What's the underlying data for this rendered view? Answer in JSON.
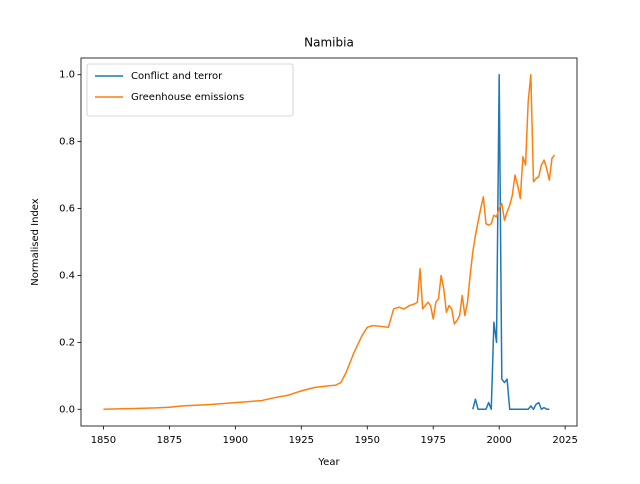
{
  "chart_data": {
    "type": "line",
    "title": "Namibia",
    "x_label": "Year",
    "y_label": "Normalised Index",
    "xlim": [
      1841.5,
      2029.5
    ],
    "ylim": [
      -0.05,
      1.05
    ],
    "xticks": [
      1850,
      1875,
      1900,
      1925,
      1950,
      1975,
      2000,
      2025
    ],
    "yticks": [
      {
        "value": 0,
        "label": "0.0"
      },
      0.2,
      0.4,
      0.6,
      0.8,
      {
        "value": 1,
        "label": "1.0"
      }
    ],
    "legend": "upper left",
    "series": [
      {
        "name": "Conflict and terror",
        "color": "#1f77b4",
        "x": [
          1990,
          1991,
          1992,
          1993,
          1994,
          1995,
          1996,
          1997,
          1998,
          1999,
          2000,
          2001,
          2002,
          2003,
          2004,
          2005,
          2006,
          2007,
          2008,
          2009,
          2010,
          2011,
          2012,
          2013,
          2014,
          2015,
          2016,
          2017,
          2018,
          2019
        ],
        "values": [
          0,
          0.03,
          0,
          0,
          0,
          0,
          0.02,
          0,
          0.26,
          0.2,
          1.0,
          0.09,
          0.08,
          0.09,
          0,
          0,
          0,
          0,
          0,
          0,
          0,
          0,
          0.01,
          0,
          0.015,
          0.02,
          0,
          0.005,
          0,
          0
        ]
      },
      {
        "name": "Greenhouse emissions",
        "color": "#ff7f0e",
        "x": [
          1850,
          1860,
          1870,
          1875,
          1880,
          1890,
          1900,
          1910,
          1915,
          1920,
          1925,
          1930,
          1935,
          1938,
          1940,
          1942,
          1945,
          1948,
          1950,
          1952,
          1955,
          1958,
          1960,
          1962,
          1964,
          1966,
          1968,
          1969,
          1970,
          1971,
          1972,
          1973,
          1974,
          1975,
          1976,
          1977,
          1978,
          1979,
          1980,
          1981,
          1982,
          1983,
          1984,
          1985,
          1986,
          1987,
          1988,
          1989,
          1990,
          1991,
          1992,
          1993,
          1994,
          1995,
          1996,
          1997,
          1998,
          1999,
          2000,
          2001,
          2002,
          2003,
          2004,
          2005,
          2006,
          2007,
          2008,
          2009,
          2010,
          2011,
          2012,
          2013,
          2014,
          2015,
          2016,
          2017,
          2018,
          2019,
          2020,
          2021
        ],
        "values": [
          0,
          0.002,
          0.004,
          0.006,
          0.01,
          0.014,
          0.02,
          0.026,
          0.035,
          0.042,
          0.055,
          0.065,
          0.07,
          0.072,
          0.08,
          0.11,
          0.17,
          0.22,
          0.245,
          0.25,
          0.248,
          0.245,
          0.3,
          0.305,
          0.3,
          0.31,
          0.315,
          0.32,
          0.42,
          0.3,
          0.31,
          0.32,
          0.31,
          0.27,
          0.32,
          0.33,
          0.4,
          0.36,
          0.29,
          0.31,
          0.3,
          0.255,
          0.265,
          0.28,
          0.34,
          0.28,
          0.32,
          0.4,
          0.47,
          0.52,
          0.56,
          0.6,
          0.635,
          0.555,
          0.55,
          0.555,
          0.58,
          0.575,
          0.6,
          0.615,
          0.565,
          0.59,
          0.61,
          0.64,
          0.7,
          0.67,
          0.63,
          0.755,
          0.73,
          0.92,
          1.0,
          0.68,
          0.69,
          0.695,
          0.73,
          0.745,
          0.72,
          0.685,
          0.75,
          0.76
        ]
      }
    ]
  }
}
